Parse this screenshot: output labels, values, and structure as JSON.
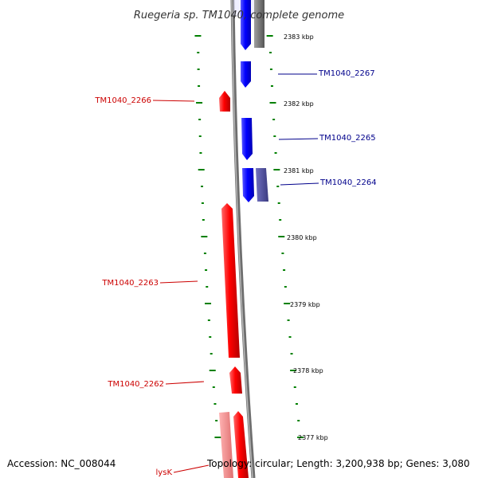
{
  "title": "Ruegeria sp. TM1040, complete genome",
  "accession": "Accession: NC_008044",
  "topology": "Topology: circular; Length: 3,200,938 bp; Genes: 3,080",
  "colors": {
    "forward": "#ff0000",
    "forward_light": "#f08080",
    "reverse": "#0000ff",
    "reverse_dark": "#4b4b9b",
    "grey": "#7a7a7a",
    "tick": "#008000",
    "label_forward": "#cc0000",
    "label_reverse": "#00008b"
  },
  "ticks": [
    {
      "label": "2383 kbp"
    },
    {
      "label": "2382 kbp"
    },
    {
      "label": "2381 kbp"
    },
    {
      "label": "2380 kbp"
    },
    {
      "label": "2379 kbp"
    },
    {
      "label": "2378 kbp"
    },
    {
      "label": "2377 kbp"
    }
  ],
  "genes": [
    {
      "name": "TM1040_2267",
      "strand": "reverse"
    },
    {
      "name": "TM1040_2266",
      "strand": "forward"
    },
    {
      "name": "TM1040_2265",
      "strand": "reverse"
    },
    {
      "name": "TM1040_2264",
      "strand": "reverse"
    },
    {
      "name": "TM1040_2263",
      "strand": "forward"
    },
    {
      "name": "TM1040_2262",
      "strand": "forward"
    },
    {
      "name": "lysK",
      "strand": "forward"
    }
  ]
}
